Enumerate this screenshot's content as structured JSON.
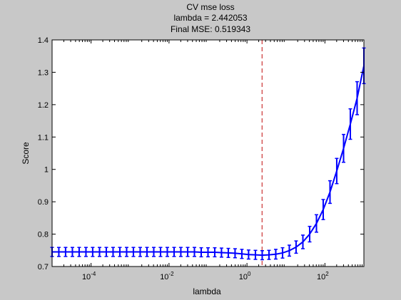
{
  "figure": {
    "background": "#c8c8c8",
    "axes_background": "#ffffff"
  },
  "chart_data": {
    "type": "line",
    "title": [
      "CV mse loss",
      "lambda = 2.442053",
      "Final MSE: 0.519343"
    ],
    "xlabel": "lambda",
    "ylabel": "Score",
    "xscale": "log",
    "xlim": [
      1e-05,
      1000
    ],
    "ylim": [
      0.7,
      1.4
    ],
    "grid": false,
    "x_ticks": [
      {
        "value": 0.0001,
        "base": "10",
        "exp": "-4"
      },
      {
        "value": 0.01,
        "base": "10",
        "exp": "-2"
      },
      {
        "value": 1,
        "base": "10",
        "exp": "0"
      },
      {
        "value": 100,
        "base": "10",
        "exp": "2"
      }
    ],
    "y_ticks": [
      "0.7",
      "0.8",
      "0.9",
      "1",
      "1.1",
      "1.2",
      "1.3",
      "1.4"
    ],
    "series": [
      {
        "color": "#0000ff",
        "error_bars": true,
        "x": [
          1e-05,
          1.49e-05,
          2.22e-05,
          3.32e-05,
          4.95e-05,
          7.39e-05,
          0.00011,
          0.000165,
          0.000246,
          0.000367,
          0.000548,
          0.000818,
          0.00122,
          0.00182,
          0.00272,
          0.00406,
          0.00606,
          0.00904,
          0.0135,
          0.0201,
          0.0301,
          0.0449,
          0.067,
          0.1,
          0.149,
          0.222,
          0.332,
          0.495,
          0.739,
          1.1,
          1.65,
          2.46,
          3.67,
          5.48,
          8.18,
          12.2,
          18.2,
          27.2,
          40.6,
          60.6,
          90.4,
          135,
          201,
          301,
          449,
          670,
          1000
        ],
        "y": [
          0.745,
          0.745,
          0.745,
          0.745,
          0.745,
          0.745,
          0.745,
          0.745,
          0.745,
          0.745,
          0.745,
          0.745,
          0.745,
          0.745,
          0.745,
          0.745,
          0.745,
          0.745,
          0.745,
          0.745,
          0.745,
          0.745,
          0.744,
          0.744,
          0.744,
          0.743,
          0.742,
          0.741,
          0.739,
          0.737,
          0.736,
          0.735,
          0.736,
          0.738,
          0.742,
          0.749,
          0.76,
          0.776,
          0.8,
          0.833,
          0.876,
          0.93,
          0.995,
          1.065,
          1.14,
          1.22,
          1.32
        ],
        "err": [
          0.014,
          0.014,
          0.014,
          0.014,
          0.014,
          0.014,
          0.014,
          0.014,
          0.014,
          0.014,
          0.014,
          0.014,
          0.014,
          0.014,
          0.014,
          0.014,
          0.014,
          0.014,
          0.014,
          0.014,
          0.014,
          0.014,
          0.014,
          0.014,
          0.014,
          0.014,
          0.014,
          0.014,
          0.014,
          0.014,
          0.014,
          0.014,
          0.014,
          0.015,
          0.016,
          0.017,
          0.019,
          0.021,
          0.024,
          0.027,
          0.031,
          0.035,
          0.039,
          0.043,
          0.047,
          0.051,
          0.055
        ]
      }
    ],
    "reference_line": {
      "x": 2.442053,
      "color": "#cc3333",
      "style": "dashed"
    }
  }
}
